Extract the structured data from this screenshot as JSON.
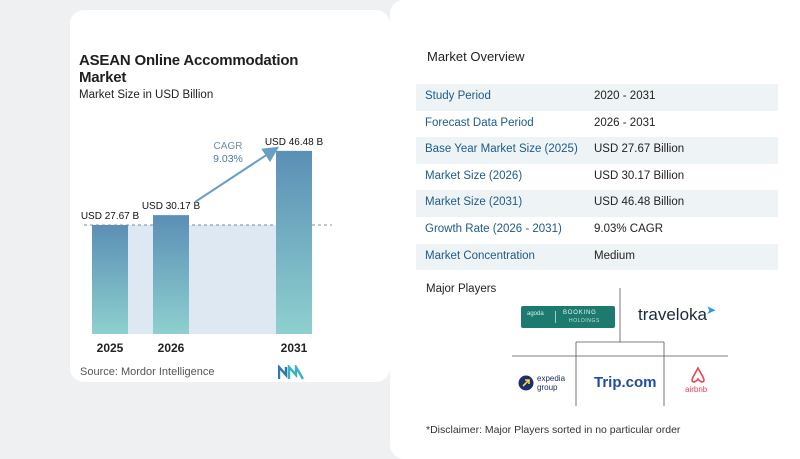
{
  "chart": {
    "title": "ASEAN Online Accommodation Market",
    "subtitle": "Market Size in USD Billion",
    "source": "Source:  Mordor Intelligence",
    "cagr_label": "CAGR",
    "cagr_value": "9.03%"
  },
  "chart_data": {
    "type": "bar",
    "title": "ASEAN Online Accommodation Market",
    "subtitle": "Market Size in USD Billion",
    "categories": [
      "2025",
      "2026",
      "2031"
    ],
    "values": [
      27.67,
      30.17,
      46.48
    ],
    "data_labels": [
      "USD 27.67 B",
      "USD 30.17 B",
      "USD 46.48 B"
    ],
    "annotation": "CAGR 9.03%",
    "ylim": [
      0,
      50
    ],
    "grid": false,
    "colors": {
      "bar_top": "#5b8fb5",
      "bar_bottom": "#8ed0cf",
      "shade": "#dde8f2",
      "arrow": "#6a9fc4"
    }
  },
  "overview": {
    "title": "Market Overview",
    "rows": [
      {
        "key": "Study Period",
        "value": "2020 - 2031"
      },
      {
        "key": "Forecast Data Period",
        "value": "2026 - 2031"
      },
      {
        "key": "Base Year Market Size (2025)",
        "value": "USD 27.67 Billion"
      },
      {
        "key": "Market Size (2026)",
        "value": "USD 30.17 Billion"
      },
      {
        "key": "Market Size (2031)",
        "value": "USD 46.48 Billion"
      },
      {
        "key": "Growth Rate (2026 - 2031)",
        "value": "9.03% CAGR"
      },
      {
        "key": "Market Concentration",
        "value": "Medium"
      }
    ]
  },
  "players": {
    "title": "Major Players",
    "logos": {
      "agoda": "agoda",
      "booking": "BOOKING",
      "booking_sub": "HOLDINGS",
      "traveloka": "traveloka",
      "expedia_1": "expedia",
      "expedia_2": "group",
      "trip": "Trip.com",
      "airbnb": "airbnb"
    }
  },
  "disclaimer": "*Disclaimer: Major Players sorted in no particular order"
}
